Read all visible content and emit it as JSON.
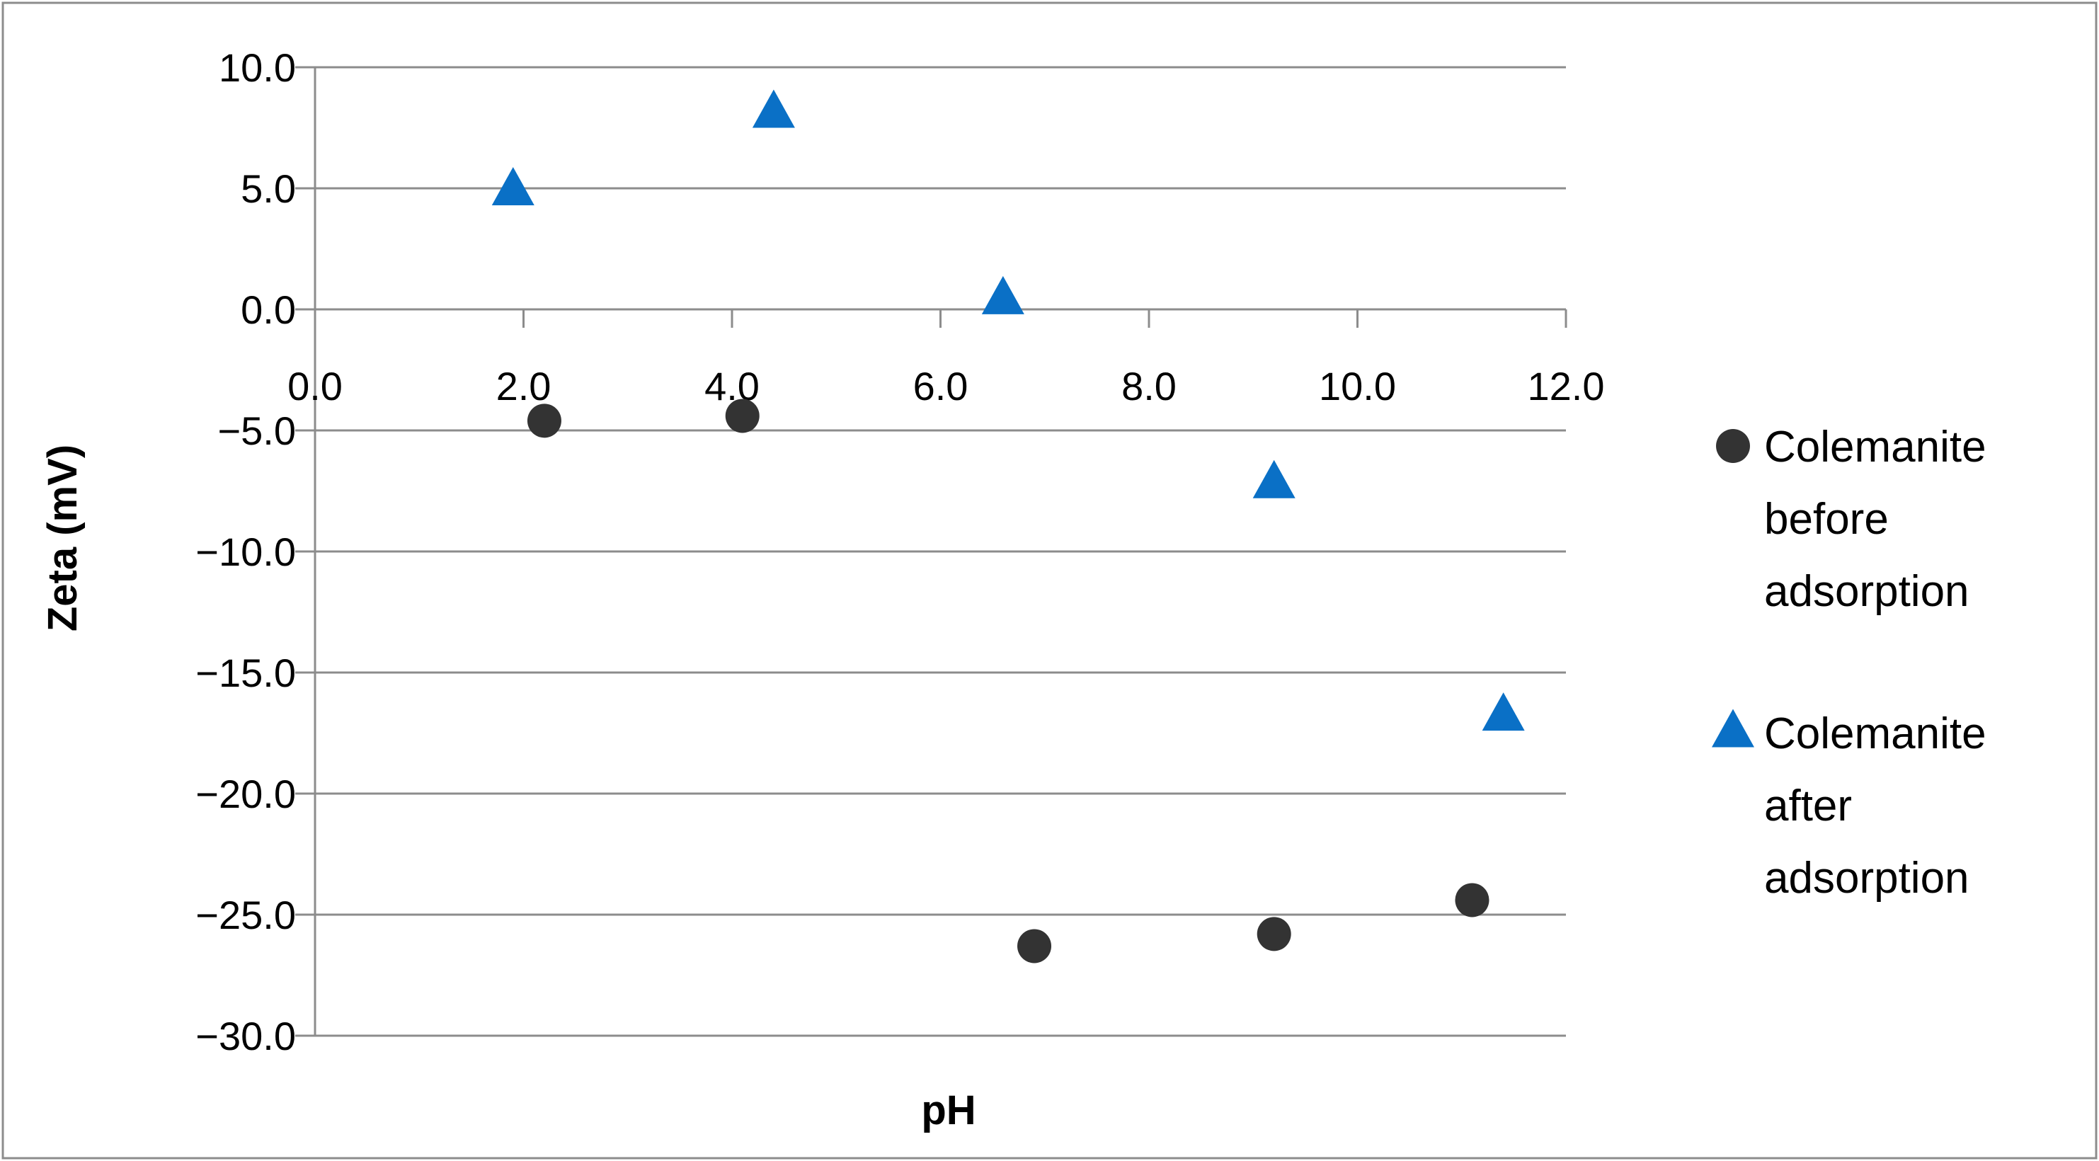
{
  "chart_data": {
    "type": "scatter",
    "title": "",
    "xlabel": "pH",
    "ylabel": "Zeta (mV)",
    "xlim": [
      0.0,
      12.0
    ],
    "ylim": [
      -30.0,
      10.0
    ],
    "x_ticks": [
      0,
      2,
      4,
      6,
      8,
      10,
      12
    ],
    "x_tick_labels": [
      "0.0",
      "2.0",
      "4.0",
      "6.0",
      "8.0",
      "10.0",
      "12.0"
    ],
    "y_ticks": [
      10,
      5,
      0,
      -5,
      -10,
      -15,
      -20,
      -25,
      -30
    ],
    "y_tick_labels": [
      "10.0",
      "5.0",
      "0.0",
      "−5.0",
      "−10.0",
      "−15.0",
      "−20.0",
      "−25.0",
      "−30.0"
    ],
    "grid": "horizontal",
    "x_axis_at_y": 0,
    "legend_position": "right",
    "series": [
      {
        "name_lines": [
          "Colemanite",
          "before",
          "adsorption"
        ],
        "marker": "circle",
        "color": "#333333",
        "points": [
          {
            "x": 2.2,
            "y": -4.6
          },
          {
            "x": 4.1,
            "y": -4.4
          },
          {
            "x": 6.9,
            "y": -26.3
          },
          {
            "x": 9.2,
            "y": -25.8
          },
          {
            "x": 11.1,
            "y": -24.4
          }
        ]
      },
      {
        "name_lines": [
          "Colemanite",
          "after",
          "adsorption"
        ],
        "marker": "triangle",
        "color": "#0a70c6",
        "points": [
          {
            "x": 1.9,
            "y": 4.9
          },
          {
            "x": 4.4,
            "y": 8.1
          },
          {
            "x": 6.6,
            "y": 0.4
          },
          {
            "x": 9.2,
            "y": -7.2
          },
          {
            "x": 11.4,
            "y": -16.8
          }
        ]
      }
    ]
  }
}
